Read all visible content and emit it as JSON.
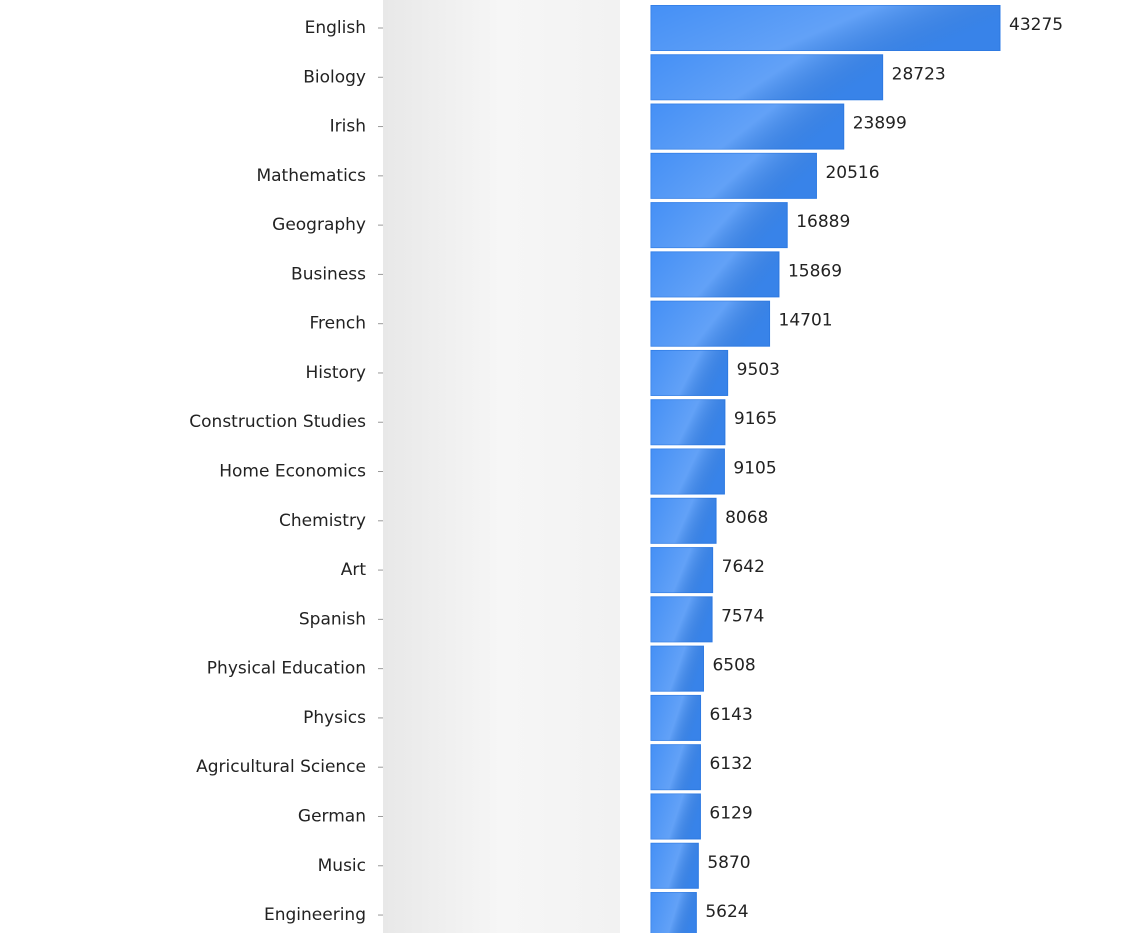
{
  "chart_data": {
    "type": "barh",
    "categories": [
      "English",
      "Biology",
      "Irish",
      "Mathematics",
      "Geography",
      "Business",
      "French",
      "History",
      "Construction Studies",
      "Home Economics",
      "Chemistry",
      "Art",
      "Spanish",
      "Physical Education",
      "Physics",
      "Agricultural Science",
      "German",
      "Music",
      "Engineering"
    ],
    "values": [
      43275,
      28723,
      23899,
      20516,
      16889,
      15869,
      14701,
      9503,
      9165,
      9105,
      8068,
      7642,
      7574,
      6508,
      6143,
      6132,
      6129,
      5870,
      5624
    ],
    "color": "#3b8af5"
  }
}
